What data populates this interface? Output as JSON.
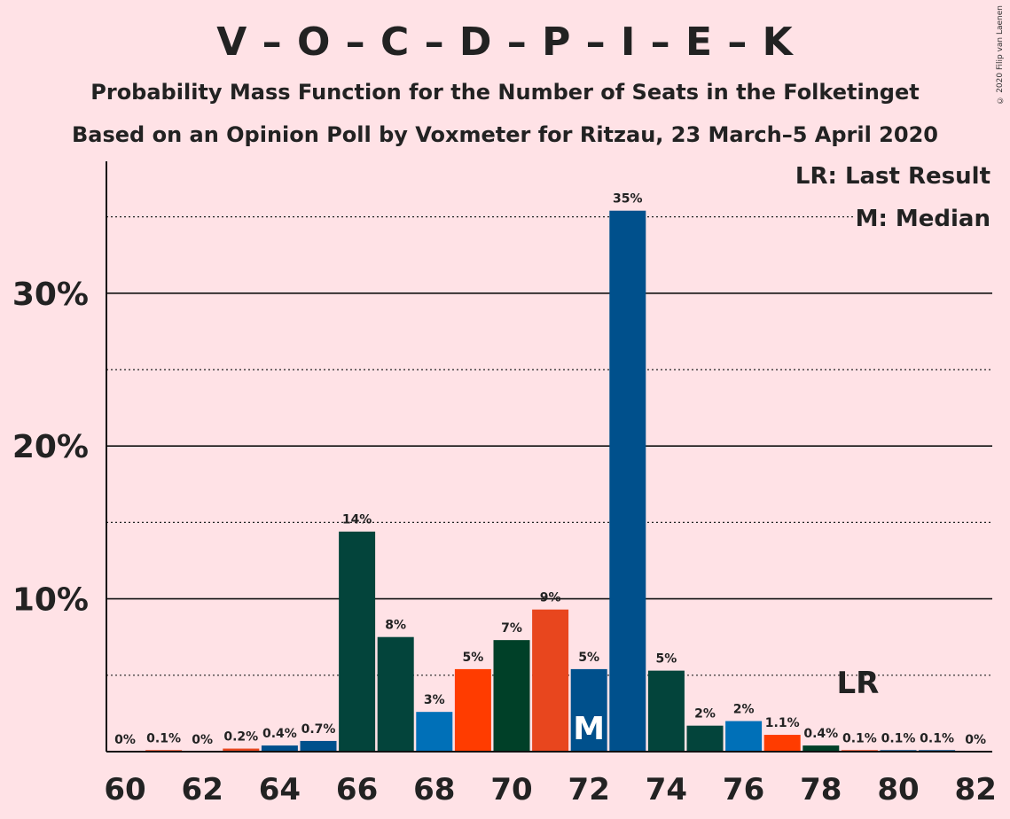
{
  "title": "V – O – C – D – P – I – E – K",
  "subtitle": "Probability Mass Function for the Number of Seats in the Folketinget",
  "subtitle2": "Based on an Opinion Poll by Voxmeter for Ritzau, 23 March–5 April 2020",
  "copyright": "© 2020 Filip van Laenen",
  "legend": {
    "lr": "LR: Last Result",
    "m": "M: Median"
  },
  "chart_data": {
    "type": "bar",
    "x": [
      60,
      61,
      62,
      63,
      64,
      65,
      66,
      67,
      68,
      69,
      70,
      71,
      72,
      73,
      74,
      75,
      76,
      77,
      78,
      79,
      80,
      81,
      82
    ],
    "values": [
      0.0,
      0.1,
      0.0,
      0.2,
      0.4,
      0.7,
      14.4,
      7.5,
      2.6,
      5.4,
      7.3,
      9.3,
      5.4,
      35.4,
      5.3,
      1.7,
      2.0,
      1.1,
      0.4,
      0.1,
      0.1,
      0.1,
      0.0
    ],
    "value_labels": [
      "0%",
      "0.1%",
      "0%",
      "0.2%",
      "0.4%",
      "0.7%",
      "14%",
      "8%",
      "3%",
      "5%",
      "7%",
      "9%",
      "5%",
      "35%",
      "5%",
      "2%",
      "2%",
      "1.1%",
      "0.4%",
      "0.1%",
      "0.1%",
      "0.1%",
      "0%"
    ],
    "bar_colors": [
      "#00508c",
      "#e8461e",
      "#00508c",
      "#e8461e",
      "#00508c",
      "#00508c",
      "#03443b",
      "#03443b",
      "#0070b8",
      "#ff3c00",
      "#004028",
      "#e8461e",
      "#00508c",
      "#00508c",
      "#03443b",
      "#03443b",
      "#0070b8",
      "#ff3c00",
      "#004028",
      "#e8461e",
      "#00508c",
      "#00508c",
      "#03443b"
    ],
    "x_ticks": [
      60,
      62,
      64,
      66,
      68,
      70,
      72,
      74,
      76,
      78,
      80,
      82
    ],
    "y_ticks": [
      10,
      20,
      30
    ],
    "y_tick_labels": [
      "10%",
      "20%",
      "30%"
    ],
    "y_minor_ticks": [
      5,
      15,
      25,
      35
    ],
    "ylim": [
      0,
      38.5
    ],
    "median": 72,
    "median_label": "M",
    "last_result": 79,
    "last_result_label": "LR"
  }
}
